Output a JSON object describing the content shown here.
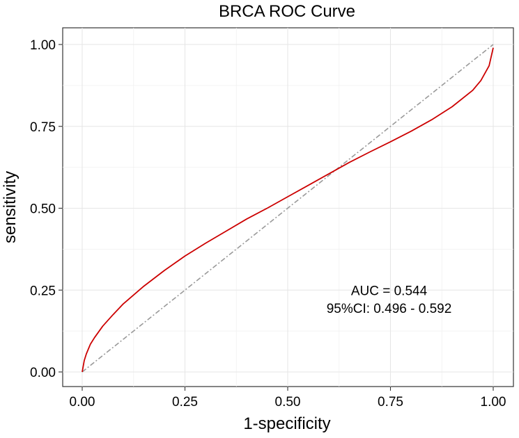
{
  "chart_data": {
    "type": "line",
    "title": "BRCA ROC Curve",
    "xlabel": "1-specificity",
    "ylabel": "sensitivity",
    "xlim": [
      0,
      1
    ],
    "ylim": [
      0,
      1
    ],
    "x_ticks": [
      0,
      0.25,
      0.5,
      0.75,
      1
    ],
    "x_tick_labels": [
      "0.00",
      "0.25",
      "0.50",
      "0.75",
      "1.00"
    ],
    "y_ticks": [
      0,
      0.25,
      0.5,
      0.75,
      1
    ],
    "y_tick_labels": [
      "0.00",
      "0.25",
      "0.50",
      "0.75",
      "1.00"
    ],
    "grid": true,
    "series": [
      {
        "name": "ROC",
        "color": "#cc0000",
        "x": [
          0,
          0.005,
          0.01,
          0.02,
          0.03,
          0.05,
          0.075,
          0.1,
          0.125,
          0.15,
          0.2,
          0.25,
          0.3,
          0.35,
          0.4,
          0.45,
          0.5,
          0.55,
          0.6,
          0.65,
          0.7,
          0.75,
          0.8,
          0.85,
          0.9,
          0.95,
          0.97,
          0.99,
          1.0
        ],
        "y": [
          0,
          0.035,
          0.055,
          0.085,
          0.105,
          0.14,
          0.175,
          0.208,
          0.235,
          0.262,
          0.31,
          0.354,
          0.393,
          0.43,
          0.467,
          0.5,
          0.535,
          0.57,
          0.605,
          0.64,
          0.672,
          0.703,
          0.735,
          0.77,
          0.81,
          0.86,
          0.89,
          0.935,
          0.99
        ]
      },
      {
        "name": "reference",
        "color": "#999999",
        "x": [
          0,
          1
        ],
        "y": [
          0,
          1
        ]
      }
    ],
    "annotations": [
      {
        "text": "AUC =  0.544",
        "x": 0.75,
        "y": 0.25
      },
      {
        "text": "95%CI:  0.496 - 0.592",
        "x": 0.75,
        "y": 0.195
      }
    ]
  }
}
